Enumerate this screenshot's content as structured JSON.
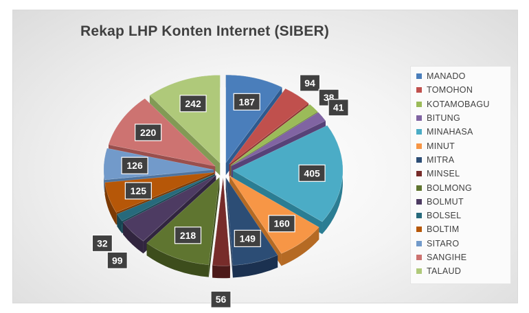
{
  "chart_data": {
    "type": "pie",
    "title": "Rekap LHP Konten Internet (SIBER)",
    "categories": [
      "MANADO",
      "TOMOHON",
      "KOTAMOBAGU",
      "BITUNG",
      "MINAHASA",
      "MINUT",
      "MITRA",
      "MINSEL",
      "BOLMONG",
      "BOLMUT",
      "BOLSEL",
      "BOLTIM",
      "SITARO",
      "SANGIHE",
      "TALAUD"
    ],
    "values": [
      187,
      94,
      38,
      41,
      405,
      160,
      149,
      56,
      218,
      99,
      32,
      125,
      126,
      220,
      242
    ],
    "colors": [
      "#4a7ebb",
      "#c0504d",
      "#9bbb59",
      "#8064a2",
      "#4bacc6",
      "#f79646",
      "#2c4d75",
      "#772c2a",
      "#5f7530",
      "#4d3b62",
      "#276a7c",
      "#b65708",
      "#729aca",
      "#cd7371",
      "#afc97a"
    ],
    "side_colors": [
      "#2e5a8f",
      "#8e3331",
      "#6f8a3a",
      "#574278",
      "#2b7d93",
      "#b56a24",
      "#1b3150",
      "#4c1a19",
      "#3d4d1c",
      "#31253f",
      "#164653",
      "#7c3a04",
      "#4f749f",
      "#9a4f4d",
      "#829a55"
    ],
    "legend_position": "right",
    "data_labels": true,
    "exploded": true
  }
}
